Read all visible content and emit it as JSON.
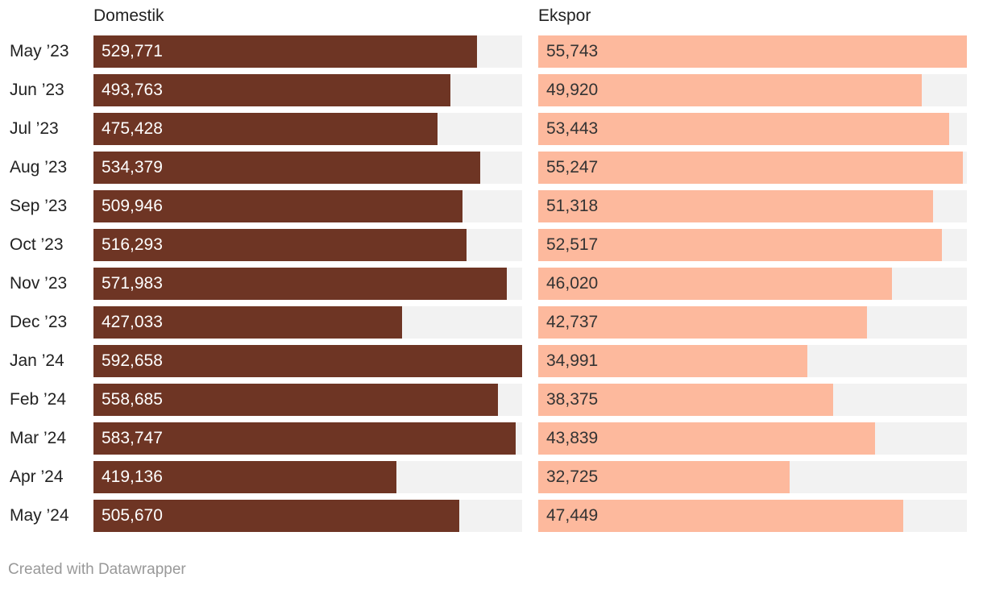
{
  "chart_data": {
    "type": "bar",
    "orientation": "horizontal",
    "categories": [
      "May ’23",
      "Jun ’23",
      "Jul ’23",
      "Aug ’23",
      "Sep ’23",
      "Oct ’23",
      "Nov ’23",
      "Dec ’23",
      "Jan ’24",
      "Feb ’24",
      "Mar ’24",
      "Apr ’24",
      "May ’24"
    ],
    "series": [
      {
        "name": "Domestik",
        "color": "#6e3524",
        "label_color": "#ffffff",
        "values": [
          529771,
          493763,
          475428,
          534379,
          509946,
          516293,
          571983,
          427033,
          592658,
          558685,
          583747,
          419136,
          505670
        ],
        "labels": [
          "529,771",
          "493,763",
          "475,428",
          "534,379",
          "509,946",
          "516,293",
          "571,983",
          "427,033",
          "592,658",
          "558,685",
          "583,747",
          "419,136",
          "505,670"
        ],
        "xlim": [
          0,
          592658
        ]
      },
      {
        "name": "Ekspor",
        "color": "#fdb99d",
        "label_color": "#333333",
        "values": [
          55743,
          49920,
          53443,
          55247,
          51318,
          52517,
          46020,
          42737,
          34991,
          38375,
          43839,
          32725,
          47449
        ],
        "labels": [
          "55,743",
          "49,920",
          "53,443",
          "55,247",
          "51,318",
          "52,517",
          "46,020",
          "42,737",
          "34,991",
          "38,375",
          "43,839",
          "32,725",
          "47,449"
        ],
        "xlim": [
          0,
          55743
        ]
      }
    ],
    "background_track_color": "#f2f2f2",
    "grid": false,
    "legend": "none"
  },
  "footer": {
    "credit": "Created with Datawrapper"
  }
}
